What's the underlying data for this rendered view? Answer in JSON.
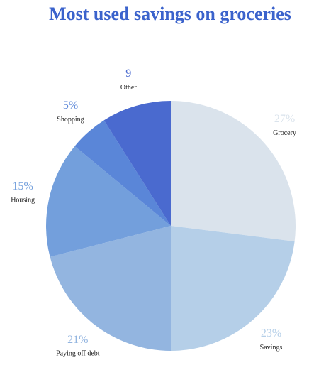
{
  "chart_data": {
    "type": "pie",
    "title": "Most used savings on groceries",
    "categories": [
      "Grocery",
      "Savings",
      "Paying off debt",
      "Housing",
      "Shopping",
      "Other"
    ],
    "values": [
      27,
      23,
      21,
      15,
      5,
      9
    ],
    "value_labels": [
      "27%",
      "23%",
      "21%",
      "15%",
      "5%",
      "9"
    ],
    "colors": [
      "#dae3ec",
      "#b5cfe8",
      "#93b5e0",
      "#739fdc",
      "#5a86d8",
      "#4a6acf"
    ]
  }
}
